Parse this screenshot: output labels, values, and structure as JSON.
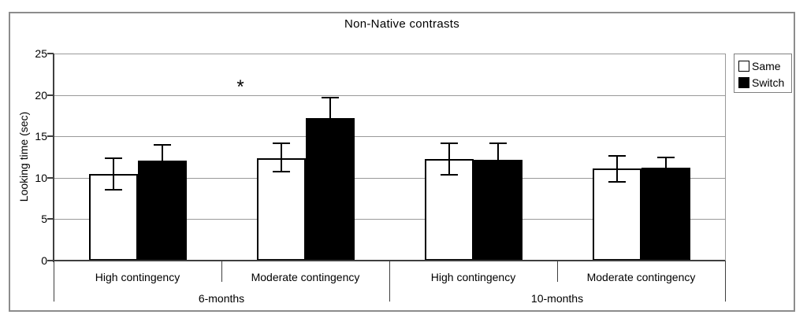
{
  "figure": {
    "title": "Non-Native contrasts",
    "y_axis_title": "Looking time (sec)"
  },
  "chart_data": {
    "type": "bar",
    "title": "Non-Native contrasts",
    "ylabel": "Looking time (sec)",
    "ylim": [
      0,
      25
    ],
    "yticks": [
      0,
      5,
      10,
      15,
      20,
      25
    ],
    "grid": true,
    "legend_position": "top-right-outside",
    "group_labels": [
      "High contingency",
      "Moderate contingency",
      "High contingency",
      "Moderate contingency"
    ],
    "super_groups": [
      {
        "label": "6-months",
        "spans_groups": [
          0,
          1
        ]
      },
      {
        "label": "10-months",
        "spans_groups": [
          2,
          3
        ]
      }
    ],
    "series": [
      {
        "name": "Same",
        "fill": "#ffffff",
        "values": [
          10.5,
          12.4,
          12.3,
          11.1
        ],
        "error_up": [
          1.9,
          1.8,
          1.9,
          1.5
        ],
        "error_down": [
          1.9,
          1.7,
          1.9,
          1.6
        ]
      },
      {
        "name": "Switch",
        "fill": "#000000",
        "values": [
          12.1,
          17.2,
          12.2,
          11.2
        ],
        "error_up": [
          1.9,
          2.5,
          2.0,
          1.3
        ],
        "error_down": [
          null,
          null,
          null,
          null
        ]
      }
    ],
    "annotations": [
      {
        "text": "*",
        "x_frac": 0.278,
        "y": 21.2,
        "meaning": "significance-marker"
      }
    ]
  },
  "colors": {
    "gridline": "#999999",
    "axis": "#3f3f3f",
    "figure_border": "#8c8c8c",
    "bar_border": "#000000",
    "background": "#ffffff"
  }
}
